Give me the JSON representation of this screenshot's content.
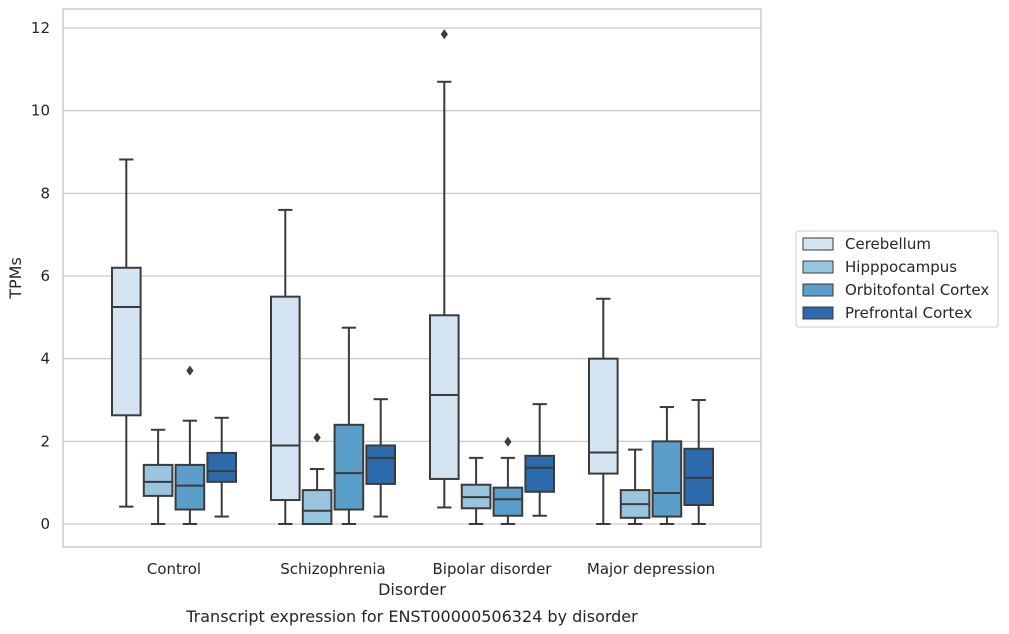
{
  "chart_data": {
    "type": "boxplot",
    "caption": "Transcript expression for ENST00000506324 by disorder",
    "xlabel": "Disorder",
    "ylabel": "TPMs",
    "ylim": [
      -0.58,
      12.45
    ],
    "yticks": [
      0,
      2,
      4,
      6,
      8,
      10,
      12
    ],
    "grid": true,
    "legend_position": "right",
    "categories": [
      "Control",
      "Schizophrenia",
      "Bipolar disorder",
      "Major depression"
    ],
    "series": [
      {
        "name": "Cerebellum",
        "color": "#d4e4f3",
        "boxes": [
          {
            "whislo": 0.42,
            "q1": 2.63,
            "med": 5.25,
            "q3": 6.2,
            "whishi": 8.82,
            "fliers": []
          },
          {
            "whislo": 0.0,
            "q1": 0.58,
            "med": 1.9,
            "q3": 5.5,
            "whishi": 7.6,
            "fliers": []
          },
          {
            "whislo": 0.4,
            "q1": 1.09,
            "med": 3.12,
            "q3": 5.05,
            "whishi": 10.7,
            "fliers": [
              11.85
            ]
          },
          {
            "whislo": 0.0,
            "q1": 1.22,
            "med": 1.73,
            "q3": 4.0,
            "whishi": 5.45,
            "fliers": []
          }
        ]
      },
      {
        "name": "Hipppocampus",
        "color": "#9ac5de",
        "boxes": [
          {
            "whislo": 0.0,
            "q1": 0.68,
            "med": 1.02,
            "q3": 1.43,
            "whishi": 2.28,
            "fliers": []
          },
          {
            "whislo": 0.0,
            "q1": 0.0,
            "med": 0.32,
            "q3": 0.82,
            "whishi": 1.33,
            "fliers": [
              2.09
            ]
          },
          {
            "whislo": 0.0,
            "q1": 0.38,
            "med": 0.65,
            "q3": 0.95,
            "whishi": 1.6,
            "fliers": []
          },
          {
            "whislo": 0.0,
            "q1": 0.15,
            "med": 0.48,
            "q3": 0.82,
            "whishi": 1.8,
            "fliers": []
          }
        ]
      },
      {
        "name": "Orbitofontal Cortex",
        "color": "#5a9ec9",
        "boxes": [
          {
            "whislo": 0.0,
            "q1": 0.35,
            "med": 0.93,
            "q3": 1.43,
            "whishi": 2.5,
            "fliers": [
              3.71
            ]
          },
          {
            "whislo": 0.0,
            "q1": 0.35,
            "med": 1.23,
            "q3": 2.4,
            "whishi": 4.75,
            "fliers": []
          },
          {
            "whislo": 0.0,
            "q1": 0.2,
            "med": 0.6,
            "q3": 0.88,
            "whishi": 1.6,
            "fliers": [
              1.99
            ]
          },
          {
            "whislo": 0.0,
            "q1": 0.18,
            "med": 0.75,
            "q3": 2.0,
            "whishi": 2.83,
            "fliers": []
          }
        ]
      },
      {
        "name": "Prefrontal Cortex",
        "color": "#2c6aac",
        "boxes": [
          {
            "whislo": 0.18,
            "q1": 1.02,
            "med": 1.28,
            "q3": 1.72,
            "whishi": 2.57,
            "fliers": []
          },
          {
            "whislo": 0.18,
            "q1": 0.97,
            "med": 1.6,
            "q3": 1.9,
            "whishi": 3.02,
            "fliers": []
          },
          {
            "whislo": 0.2,
            "q1": 0.78,
            "med": 1.36,
            "q3": 1.65,
            "whishi": 2.9,
            "fliers": []
          },
          {
            "whislo": 0.0,
            "q1": 0.46,
            "med": 1.12,
            "q3": 1.82,
            "whishi": 3.0,
            "fliers": []
          }
        ]
      }
    ]
  }
}
